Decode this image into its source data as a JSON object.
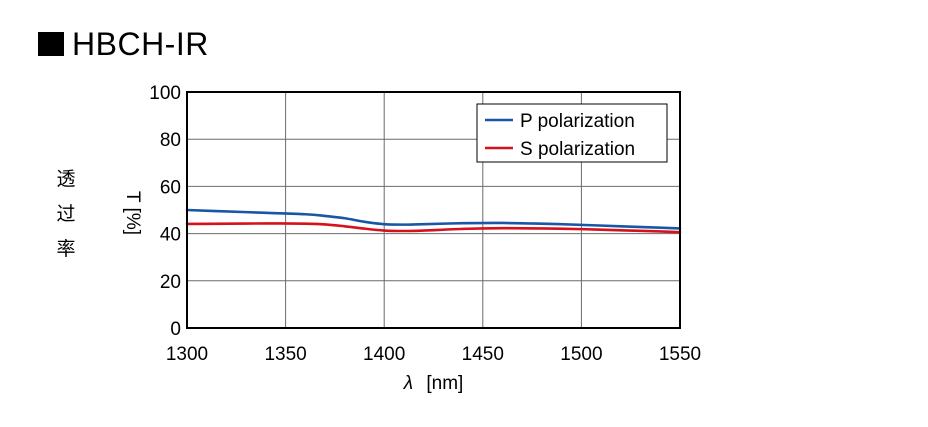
{
  "page": {
    "title": "HBCH-IR",
    "ylabel_jp": [
      "透",
      "过",
      "率"
    ]
  },
  "chart_data": {
    "type": "line",
    "title": "HBCH-IR",
    "xlabel": "λ [nm]",
    "xlabel_symbol": "λ",
    "xlabel_unit": "[nm]",
    "ylabel": "T [%]",
    "xlim": [
      1300,
      1550
    ],
    "ylim": [
      0,
      100
    ],
    "xticks": [
      1300,
      1350,
      1400,
      1450,
      1500,
      1550
    ],
    "yticks": [
      0,
      20,
      40,
      60,
      80,
      100
    ],
    "grid": true,
    "legend_position": "top-right",
    "series": [
      {
        "name": "P polarization",
        "color": "#1a56a6",
        "x": [
          1300,
          1320,
          1340,
          1360,
          1370,
          1380,
          1390,
          1400,
          1410,
          1420,
          1440,
          1460,
          1480,
          1500,
          1520,
          1540,
          1550
        ],
        "y": [
          50.0,
          49.4,
          48.8,
          48.2,
          47.5,
          46.5,
          45.0,
          44.0,
          43.8,
          44.0,
          44.4,
          44.5,
          44.2,
          43.7,
          43.1,
          42.5,
          42.2
        ]
      },
      {
        "name": "S polarization",
        "color": "#d7111c",
        "x": [
          1300,
          1320,
          1340,
          1360,
          1370,
          1380,
          1390,
          1400,
          1410,
          1420,
          1440,
          1460,
          1480,
          1500,
          1520,
          1540,
          1550
        ],
        "y": [
          44.1,
          44.2,
          44.3,
          44.2,
          43.9,
          43.1,
          42.1,
          41.3,
          41.1,
          41.3,
          42.0,
          42.3,
          42.2,
          41.9,
          41.4,
          40.9,
          40.6
        ]
      }
    ]
  }
}
